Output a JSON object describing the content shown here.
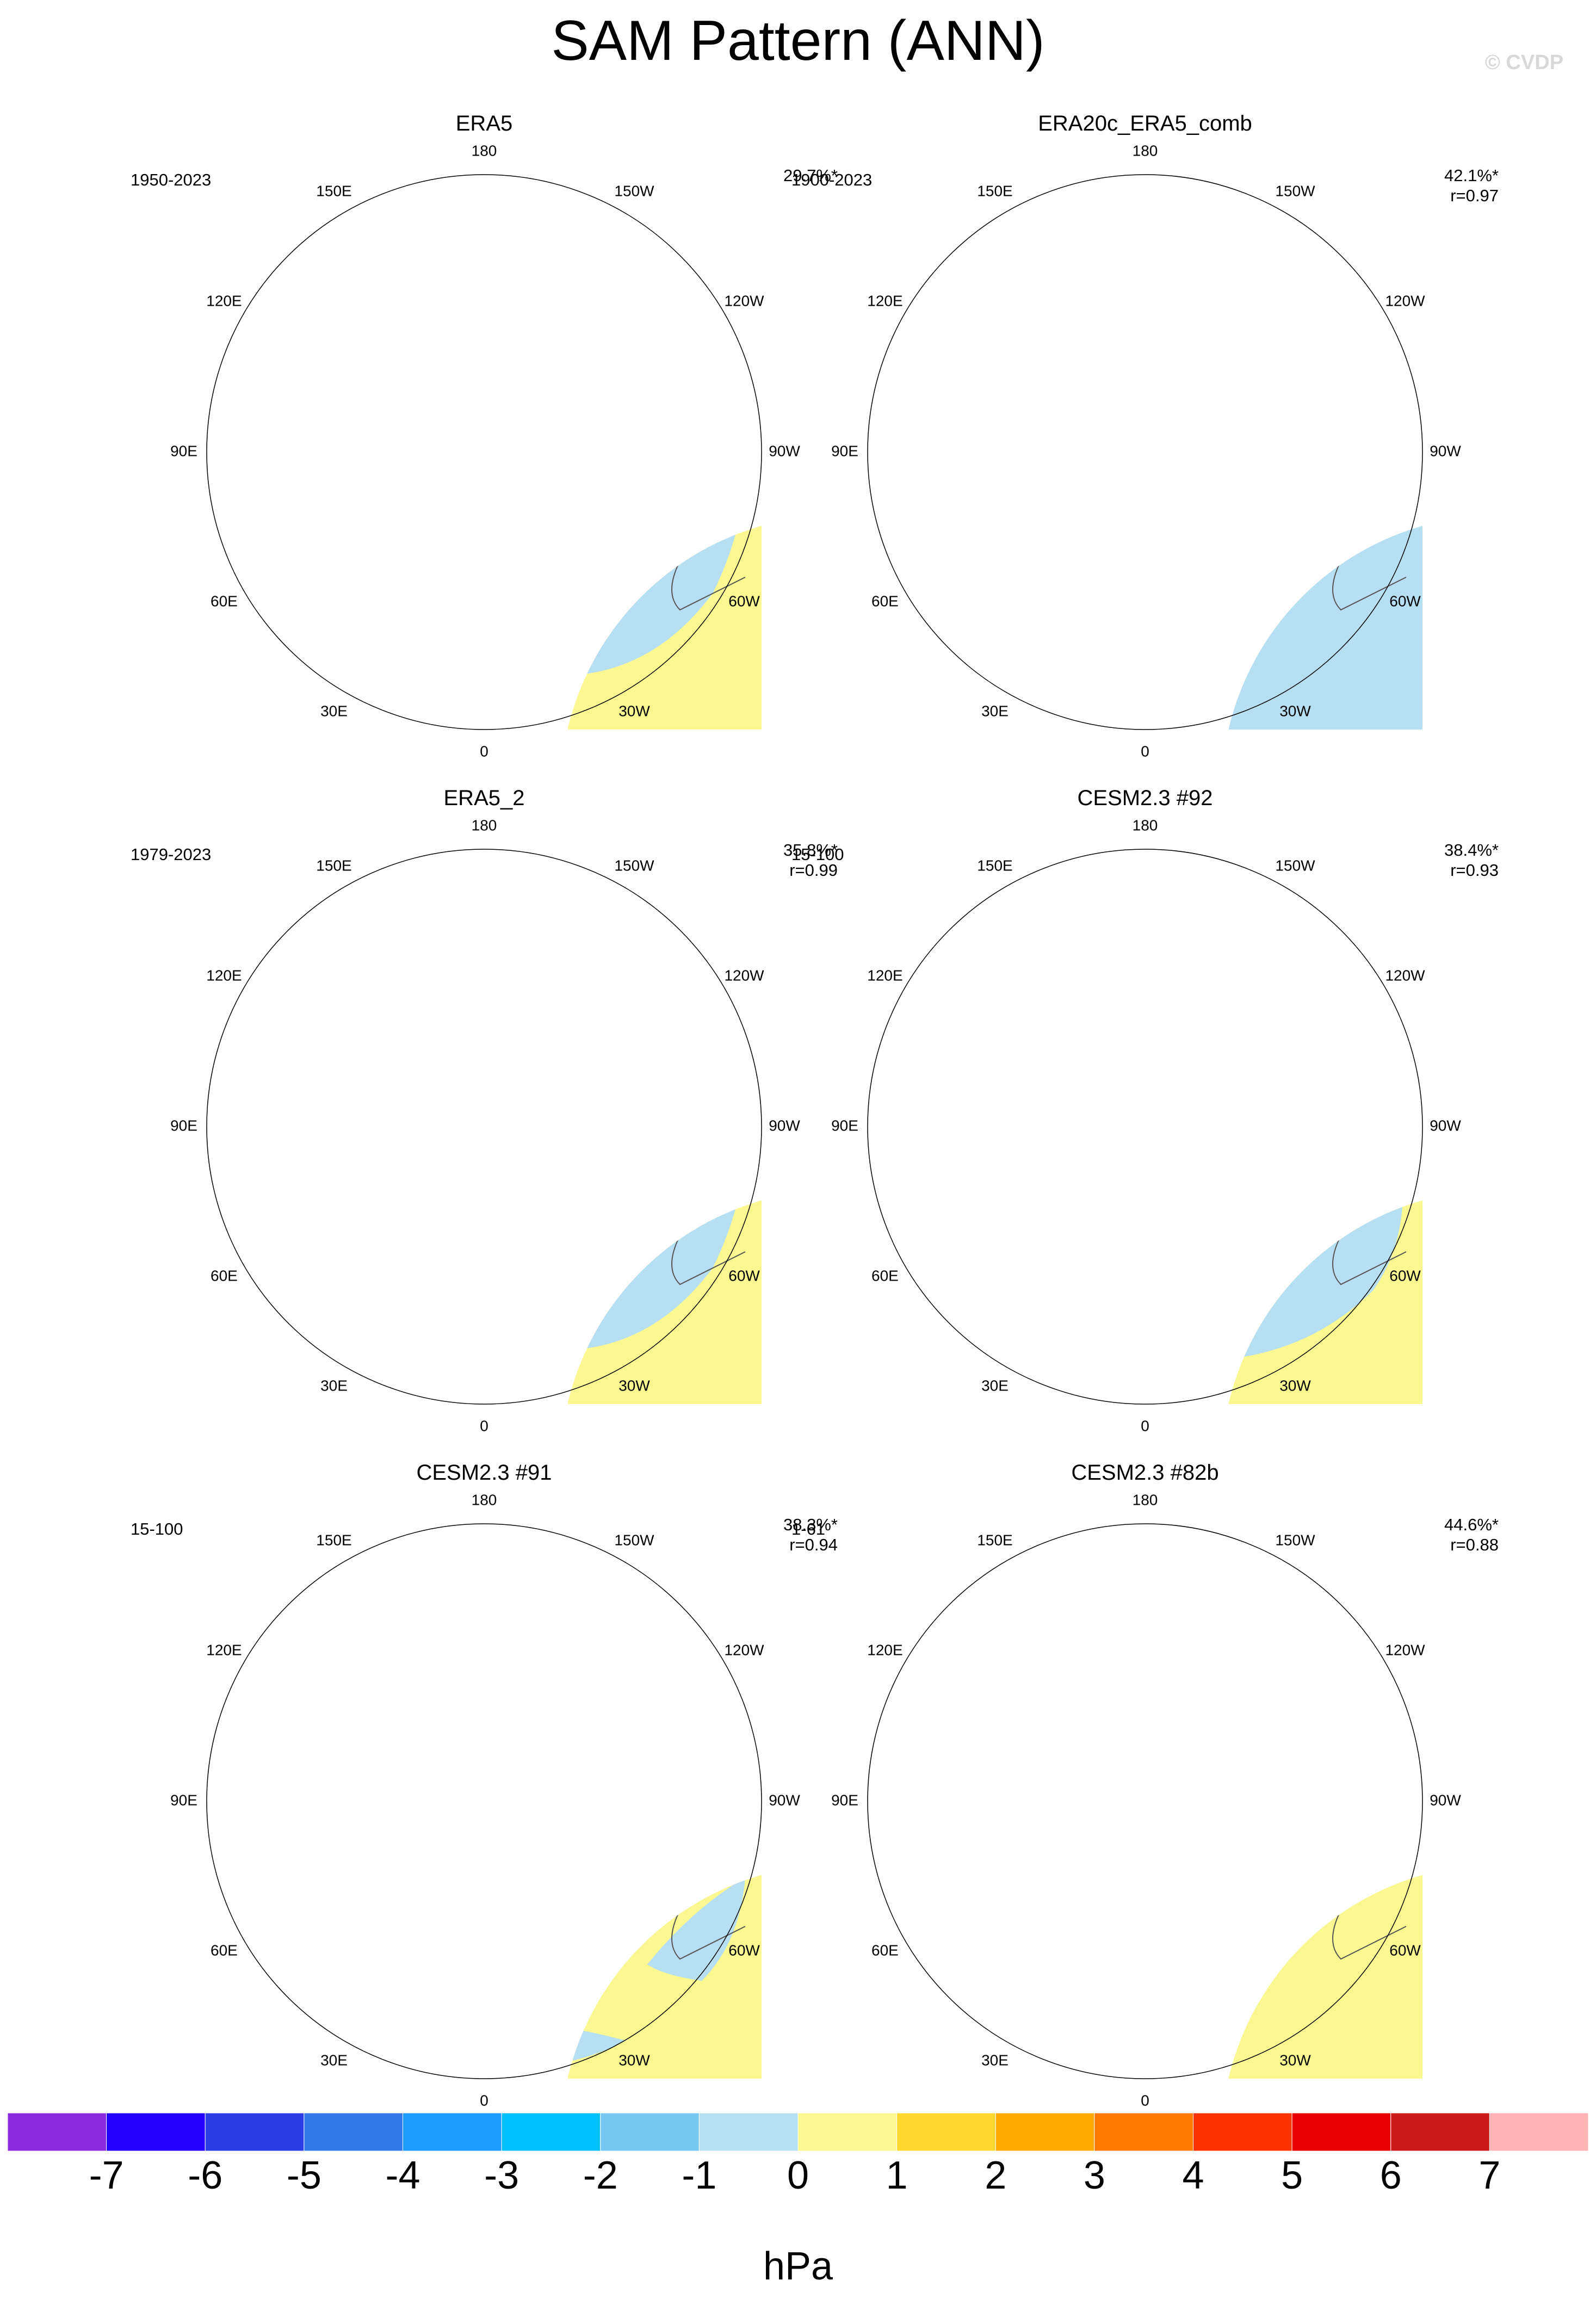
{
  "title": "SAM Pattern (ANN)",
  "copyright": "© CVDP",
  "lon_labels": [
    "0",
    "30E",
    "60E",
    "90E",
    "120E",
    "150E",
    "180",
    "150W",
    "120W",
    "90W",
    "60W",
    "30W"
  ],
  "panels": [
    {
      "title": "ERA5",
      "period": "1950-2023",
      "stats": "29.7%*",
      "r": "",
      "variant": 0
    },
    {
      "title": "ERA20c_ERA5_comb",
      "period": "1900-2023",
      "stats": "42.1%*",
      "r": "r=0.97",
      "variant": 1
    },
    {
      "title": "ERA5_2",
      "period": "1979-2023",
      "stats": "35.8%*",
      "r": "r=0.99",
      "variant": 0
    },
    {
      "title": "CESM2.3 #92",
      "period": "15-100",
      "stats": "38.4%*",
      "r": "r=0.93",
      "variant": 2
    },
    {
      "title": "CESM2.3 #91",
      "period": "15-100",
      "stats": "38.3%*",
      "r": "r=0.94",
      "variant": 3
    },
    {
      "title": "CESM2.3 #82b",
      "period": "1-61",
      "stats": "44.6%*",
      "r": "r=0.88",
      "variant": 4
    }
  ],
  "colorbar": {
    "units": "hPa",
    "labels": [
      "-7",
      "-6",
      "-5",
      "-4",
      "-3",
      "-2",
      "-1",
      "0",
      "1",
      "2",
      "3",
      "4",
      "5",
      "6",
      "7"
    ],
    "colors": [
      "#8a2be2",
      "#2400ff",
      "#2b3ee6",
      "#3578ea",
      "#1e9bff",
      "#00bfff",
      "#76c8f0",
      "#b7dff3",
      "#fbf791",
      "#fed82f",
      "#ffa800",
      "#ff7800",
      "#ff3300",
      "#e60000",
      "#cc1a1a",
      "#ffb3b3"
    ]
  }
}
